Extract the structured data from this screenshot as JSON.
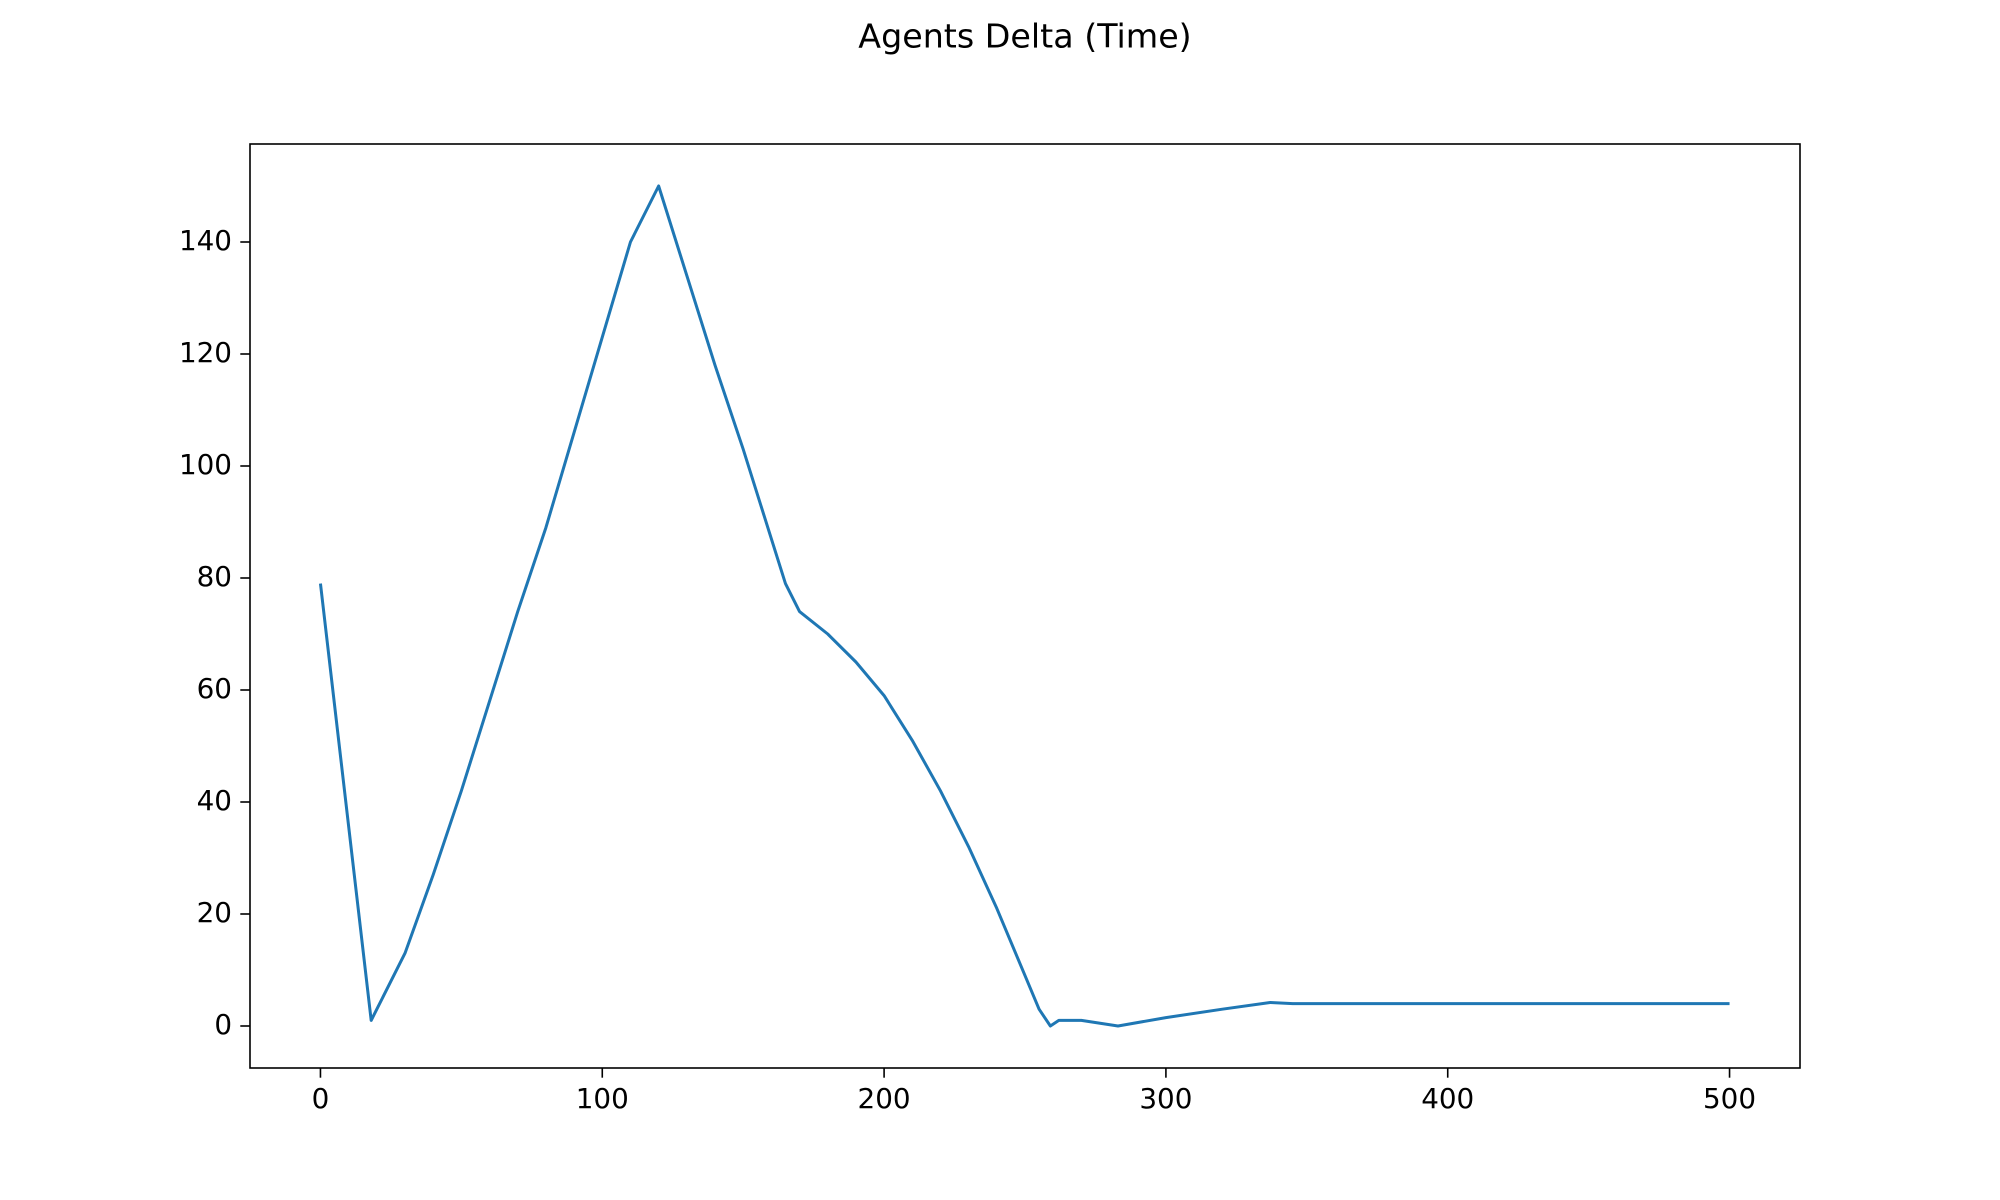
{
  "chart_data": {
    "type": "line",
    "title": "Agents Delta (Time)",
    "x": [
      0,
      18,
      20,
      30,
      40,
      50,
      60,
      70,
      80,
      90,
      100,
      110,
      120,
      130,
      140,
      150,
      160,
      165,
      170,
      180,
      190,
      200,
      210,
      220,
      230,
      240,
      250,
      255,
      259,
      262,
      270,
      283,
      300,
      320,
      337,
      345,
      360,
      400,
      450,
      500
    ],
    "series": [
      {
        "name": "Agents Delta",
        "color": "#1f77b4",
        "values": [
          79,
          1,
          3,
          13,
          27,
          42,
          58,
          74,
          89,
          106,
          123,
          140,
          150,
          134,
          118,
          103,
          87,
          79,
          74,
          70,
          65,
          59,
          51,
          42,
          32,
          21,
          9,
          3,
          0,
          1,
          1,
          0,
          1.5,
          3,
          4.2,
          4,
          4,
          4,
          4,
          4
        ]
      }
    ],
    "xlim": [
      -25,
      525
    ],
    "ylim": [
      -7.5,
      157.5
    ],
    "xticks": [
      0,
      100,
      200,
      300,
      400,
      500
    ],
    "yticks": [
      0,
      20,
      40,
      60,
      80,
      100,
      120,
      140
    ]
  }
}
